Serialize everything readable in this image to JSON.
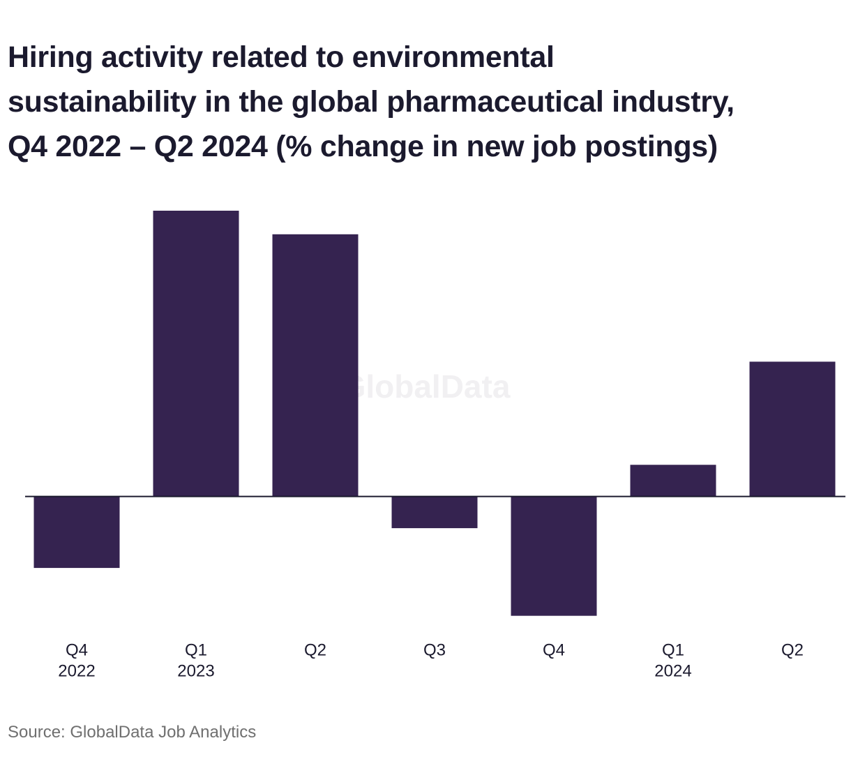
{
  "title_lines": [
    "Hiring activity related to environmental",
    "sustainability in the global pharmaceutical industry,",
    "Q4 2022 – Q2 2024 (% change in new job postings)"
  ],
  "watermark": "GlobalData",
  "source": "Source: GlobalData Job Analytics",
  "colors": {
    "bar": "#352350",
    "axis": "#1b1a2e",
    "text": "#1b1a2e",
    "watermark": "#f1f0f2"
  },
  "chart_data": {
    "type": "bar",
    "title": "Hiring activity related to environmental sustainability in the global pharmaceutical industry, Q4 2022 – Q2 2024 (% change in new job postings)",
    "categories": [
      "Q4 2022",
      "Q1 2023",
      "Q2 2023",
      "Q3 2023",
      "Q4 2023",
      "Q1 2024",
      "Q2 2024"
    ],
    "tick_labels": [
      [
        "Q4",
        "2022"
      ],
      [
        "Q1",
        "2023"
      ],
      [
        "Q2"
      ],
      [
        "Q3"
      ],
      [
        "Q4"
      ],
      [
        "Q1",
        "2024"
      ],
      [
        "Q2"
      ]
    ],
    "values": [
      -10.6,
      42.4,
      38.9,
      -4.7,
      -17.7,
      4.7,
      20.0
    ],
    "ylim": [
      -19.7,
      42.4
    ],
    "y_axis_labels_shown": false,
    "grid": false,
    "xlabel": "",
    "ylabel": ""
  }
}
